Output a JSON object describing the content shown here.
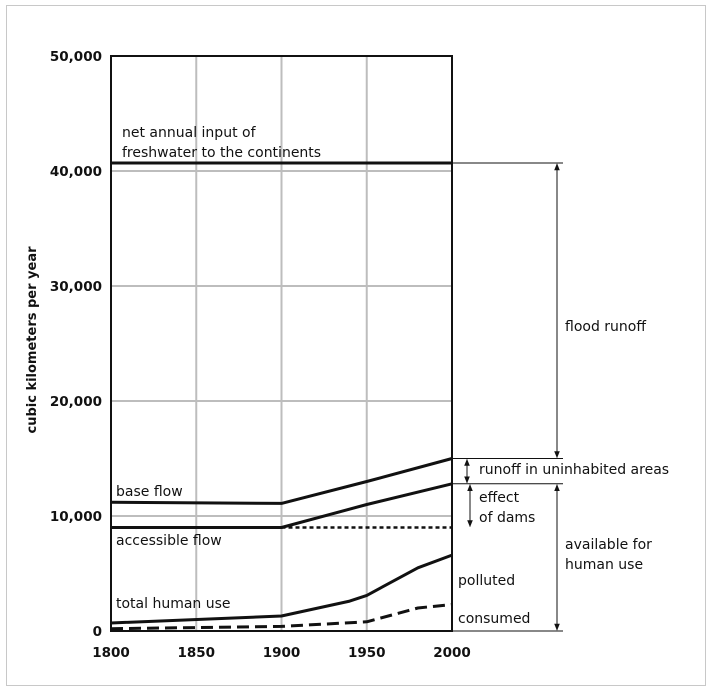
{
  "chart_data": {
    "type": "line",
    "title": "",
    "xlabel": "",
    "ylabel": "cubic kilometers per year",
    "xlim": [
      1800,
      2000
    ],
    "ylim": [
      0,
      50000
    ],
    "x_ticks": [
      "1800",
      "1850",
      "1900",
      "1950",
      "2000"
    ],
    "y_ticks": [
      "0",
      "10,000",
      "20,000",
      "30,000",
      "40,000",
      "50,000"
    ],
    "grid": true,
    "series": [
      {
        "name": "net annual input of freshwater to the continents",
        "style": "solid",
        "points": [
          [
            1800,
            40700
          ],
          [
            2000,
            40700
          ]
        ]
      },
      {
        "name": "",
        "style": "solid",
        "points": [
          [
            1800,
            11200
          ],
          [
            1900,
            11100
          ],
          [
            1950,
            13000
          ],
          [
            2000,
            15000
          ]
        ]
      },
      {
        "name": "base flow",
        "style": "solid",
        "points": [
          [
            1800,
            9000
          ],
          [
            1900,
            9000
          ],
          [
            1950,
            11000
          ],
          [
            2000,
            12800
          ]
        ]
      },
      {
        "name": "accessible flow",
        "style": "dotted",
        "points": [
          [
            1900,
            9000
          ],
          [
            2000,
            9000
          ]
        ]
      },
      {
        "name": "total human use",
        "style": "solid",
        "points": [
          [
            1800,
            700
          ],
          [
            1900,
            1300
          ],
          [
            1940,
            2600
          ],
          [
            1950,
            3100
          ],
          [
            1980,
            5500
          ],
          [
            2000,
            6600
          ]
        ]
      },
      {
        "name": "consumed",
        "style": "dashed",
        "points": [
          [
            1800,
            200
          ],
          [
            1900,
            400
          ],
          [
            1950,
            800
          ],
          [
            1980,
            2000
          ],
          [
            2000,
            2300
          ]
        ]
      }
    ],
    "annotations": {
      "net_input_line1": "net annual input of",
      "net_input_line2": "freshwater to the continents",
      "base_flow": "base flow",
      "accessible_flow": "accessible flow",
      "total_human_use": "total human use",
      "polluted": "polluted",
      "consumed": "consumed",
      "flood_runoff": "flood runoff",
      "runoff_uninhabited": "runoff in uninhabited areas",
      "effect_of_dams_line1": "effect",
      "effect_of_dams_line2": "of dams",
      "available_line1": "available for",
      "available_line2": "human use"
    },
    "brackets": [
      {
        "label": "flood runoff",
        "from": 15000,
        "to": 40700
      },
      {
        "label": "runoff in uninhabited areas",
        "from": 12800,
        "to": 15000
      },
      {
        "label": "effect of dams",
        "from": 9000,
        "to": 12800
      },
      {
        "label": "available for human use",
        "from": 0,
        "to": 12800
      }
    ]
  }
}
